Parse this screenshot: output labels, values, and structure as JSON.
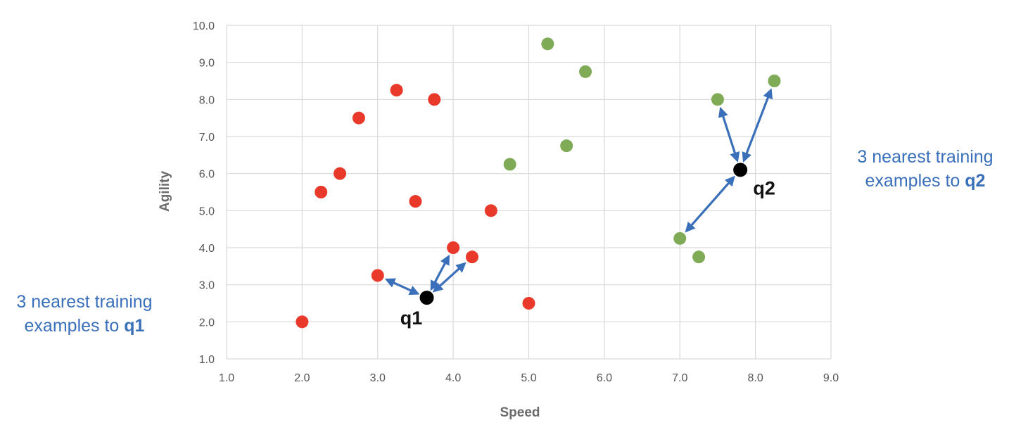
{
  "colors": {
    "class_a": "#e8392b",
    "class_b": "#7fab56",
    "query": "#000000",
    "arrow": "#3a6fba",
    "grid": "#d9d9d9",
    "annotation": "#3a6fba"
  },
  "chart_data": {
    "type": "scatter",
    "title": "",
    "xlabel": "Speed",
    "ylabel": "Agility",
    "xlim": [
      1.0,
      9.0
    ],
    "ylim": [
      1.0,
      10.0
    ],
    "xticks": [
      "1.0",
      "2.0",
      "3.0",
      "4.0",
      "5.0",
      "6.0",
      "7.0",
      "8.0",
      "9.0"
    ],
    "yticks": [
      "1.0",
      "2.0",
      "3.0",
      "4.0",
      "5.0",
      "6.0",
      "7.0",
      "8.0",
      "9.0",
      "10.0"
    ],
    "grid": true,
    "series": [
      {
        "color": "#e8392b",
        "points": [
          [
            2.0,
            2.0
          ],
          [
            2.25,
            5.5
          ],
          [
            2.5,
            6.0
          ],
          [
            2.75,
            7.5
          ],
          [
            3.0,
            3.25
          ],
          [
            3.25,
            8.25
          ],
          [
            3.5,
            5.25
          ],
          [
            3.75,
            8.0
          ],
          [
            4.0,
            4.0
          ],
          [
            4.25,
            3.75
          ],
          [
            4.5,
            5.0
          ],
          [
            5.0,
            2.5
          ]
        ]
      },
      {
        "color": "#7fab56",
        "points": [
          [
            4.75,
            6.25
          ],
          [
            5.25,
            9.5
          ],
          [
            5.5,
            6.75
          ],
          [
            5.75,
            8.75
          ],
          [
            7.0,
            4.25
          ],
          [
            7.25,
            3.75
          ],
          [
            7.5,
            8.0
          ],
          [
            8.25,
            8.5
          ]
        ]
      }
    ],
    "queries": [
      {
        "label": "q1",
        "x": 3.65,
        "y": 2.65,
        "neighbors": [
          [
            3.0,
            3.25
          ],
          [
            4.0,
            4.0
          ],
          [
            4.25,
            3.75
          ]
        ]
      },
      {
        "label": "q2",
        "x": 7.8,
        "y": 6.1,
        "neighbors": [
          [
            7.5,
            8.0
          ],
          [
            8.25,
            8.5
          ],
          [
            7.0,
            4.25
          ]
        ]
      }
    ],
    "annotations": [
      {
        "id": "q1",
        "line1": "3 nearest training",
        "line2_prefix": "examples to ",
        "bold": "q1"
      },
      {
        "id": "q2",
        "line1": "3 nearest training",
        "line2_prefix": "examples to ",
        "bold": "q2"
      }
    ]
  }
}
